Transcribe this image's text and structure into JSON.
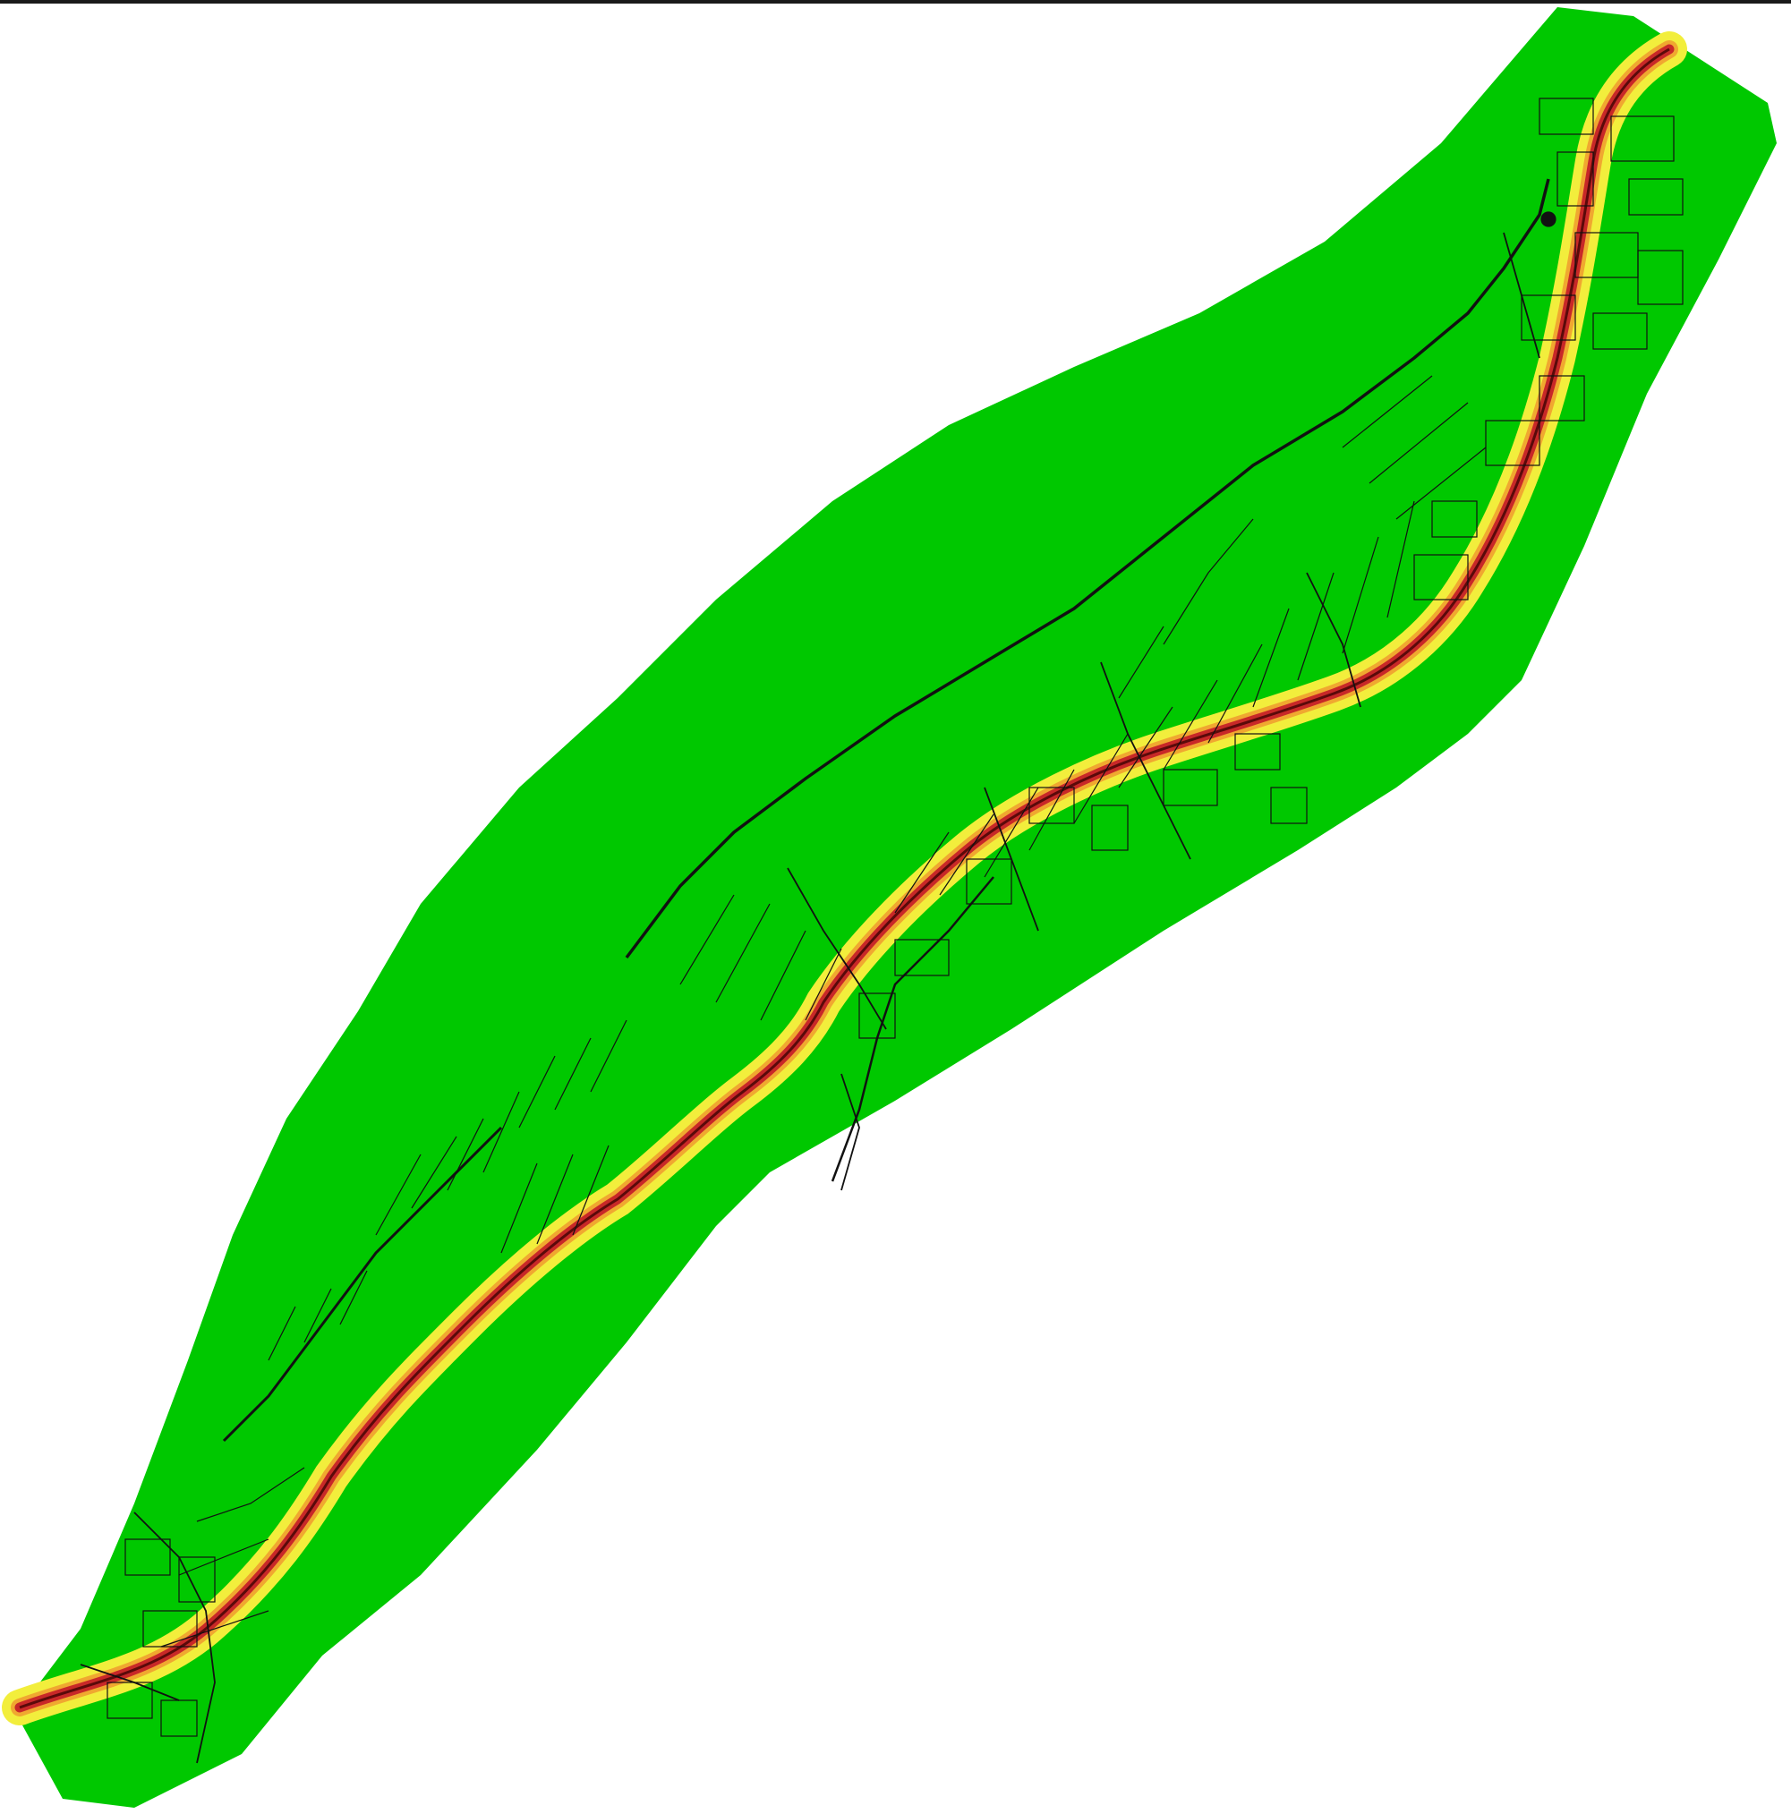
{
  "map": {
    "kind": "noise-corridor-map",
    "background_color": "#ffffff",
    "frame_color": "#1a1a1a",
    "legend": "none",
    "text_labels": "none",
    "zones": [
      {
        "name": "outer-zone",
        "color": "#00c800"
      },
      {
        "name": "moderate-zone",
        "color": "#f2ee3c"
      },
      {
        "name": "high-zone",
        "color": "#f0a830"
      },
      {
        "name": "very-high-zone",
        "color": "#c82828"
      },
      {
        "name": "road-centerline",
        "color": "#5a0a0a"
      }
    ],
    "basemap_line_color": "#111111"
  }
}
